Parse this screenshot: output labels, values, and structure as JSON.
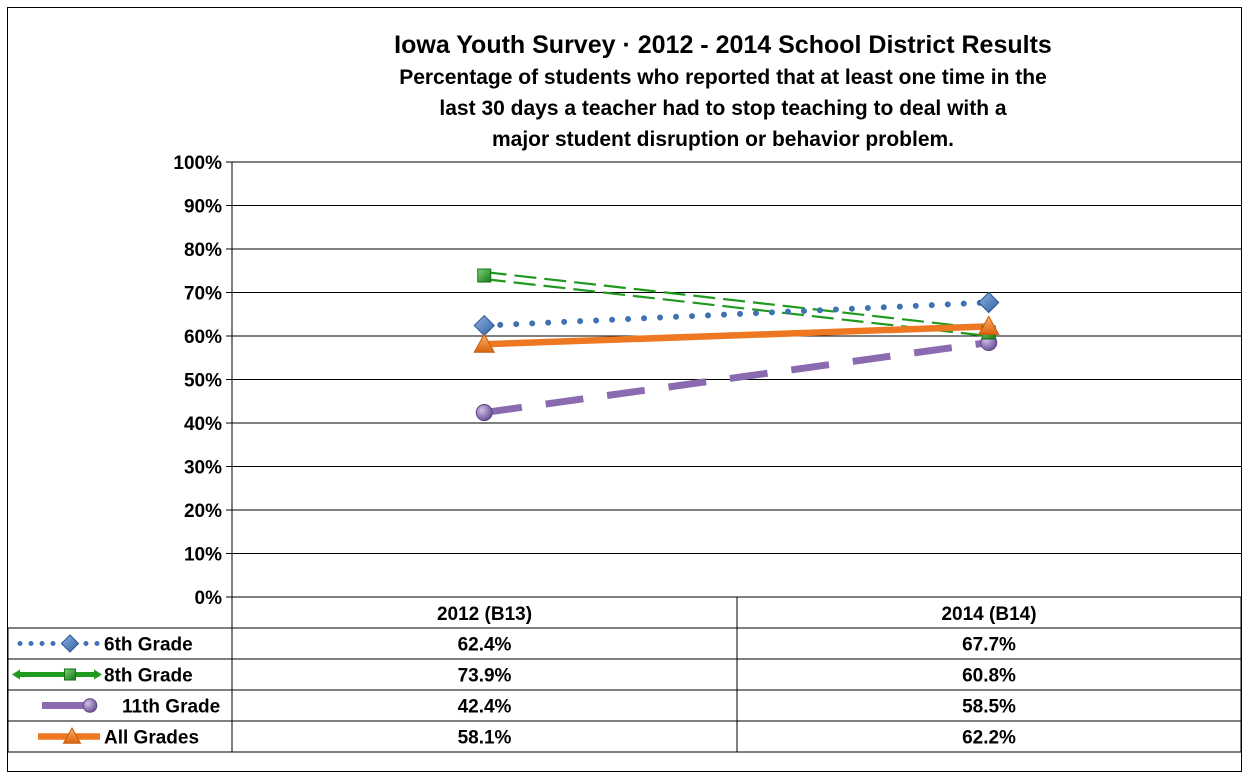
{
  "chart_data": {
    "type": "line",
    "title": "Iowa Youth Survey · 2012 - 2014 School District Results",
    "subtitle_lines": [
      "Percentage of students who reported that at least one time in the",
      "last 30 days a teacher had to stop teaching to deal with a",
      "major student disruption or behavior problem."
    ],
    "categories": [
      "2012 (B13)",
      "2014 (B14)"
    ],
    "ylim": [
      0,
      100
    ],
    "yticks": [
      0,
      10,
      20,
      30,
      40,
      50,
      60,
      70,
      80,
      90,
      100
    ],
    "ytick_labels": [
      "0%",
      "10%",
      "20%",
      "30%",
      "40%",
      "50%",
      "60%",
      "70%",
      "80%",
      "90%",
      "100%"
    ],
    "grid": true,
    "legend_placement": "data-table-below",
    "series": [
      {
        "name": "6th Grade",
        "values": [
          62.4,
          67.7
        ],
        "labels": [
          "62.4%",
          "67.7%"
        ],
        "color": "#3d72b4",
        "line_style": "dotted",
        "marker": "diamond"
      },
      {
        "name": "8th Grade",
        "values": [
          73.9,
          60.8
        ],
        "labels": [
          "73.9%",
          "60.8%"
        ],
        "color": "#1f9a1f",
        "line_style": "double-dashed",
        "marker": "square"
      },
      {
        "name": "11th Grade",
        "values": [
          42.4,
          58.5
        ],
        "labels": [
          "42.4%",
          "58.5%"
        ],
        "color": "#8b6bb0",
        "line_style": "dashed",
        "marker": "circle"
      },
      {
        "name": "All Grades",
        "values": [
          58.1,
          62.2
        ],
        "labels": [
          "58.1%",
          "62.2%"
        ],
        "color": "#ee7722",
        "line_style": "solid",
        "marker": "triangle"
      }
    ]
  }
}
